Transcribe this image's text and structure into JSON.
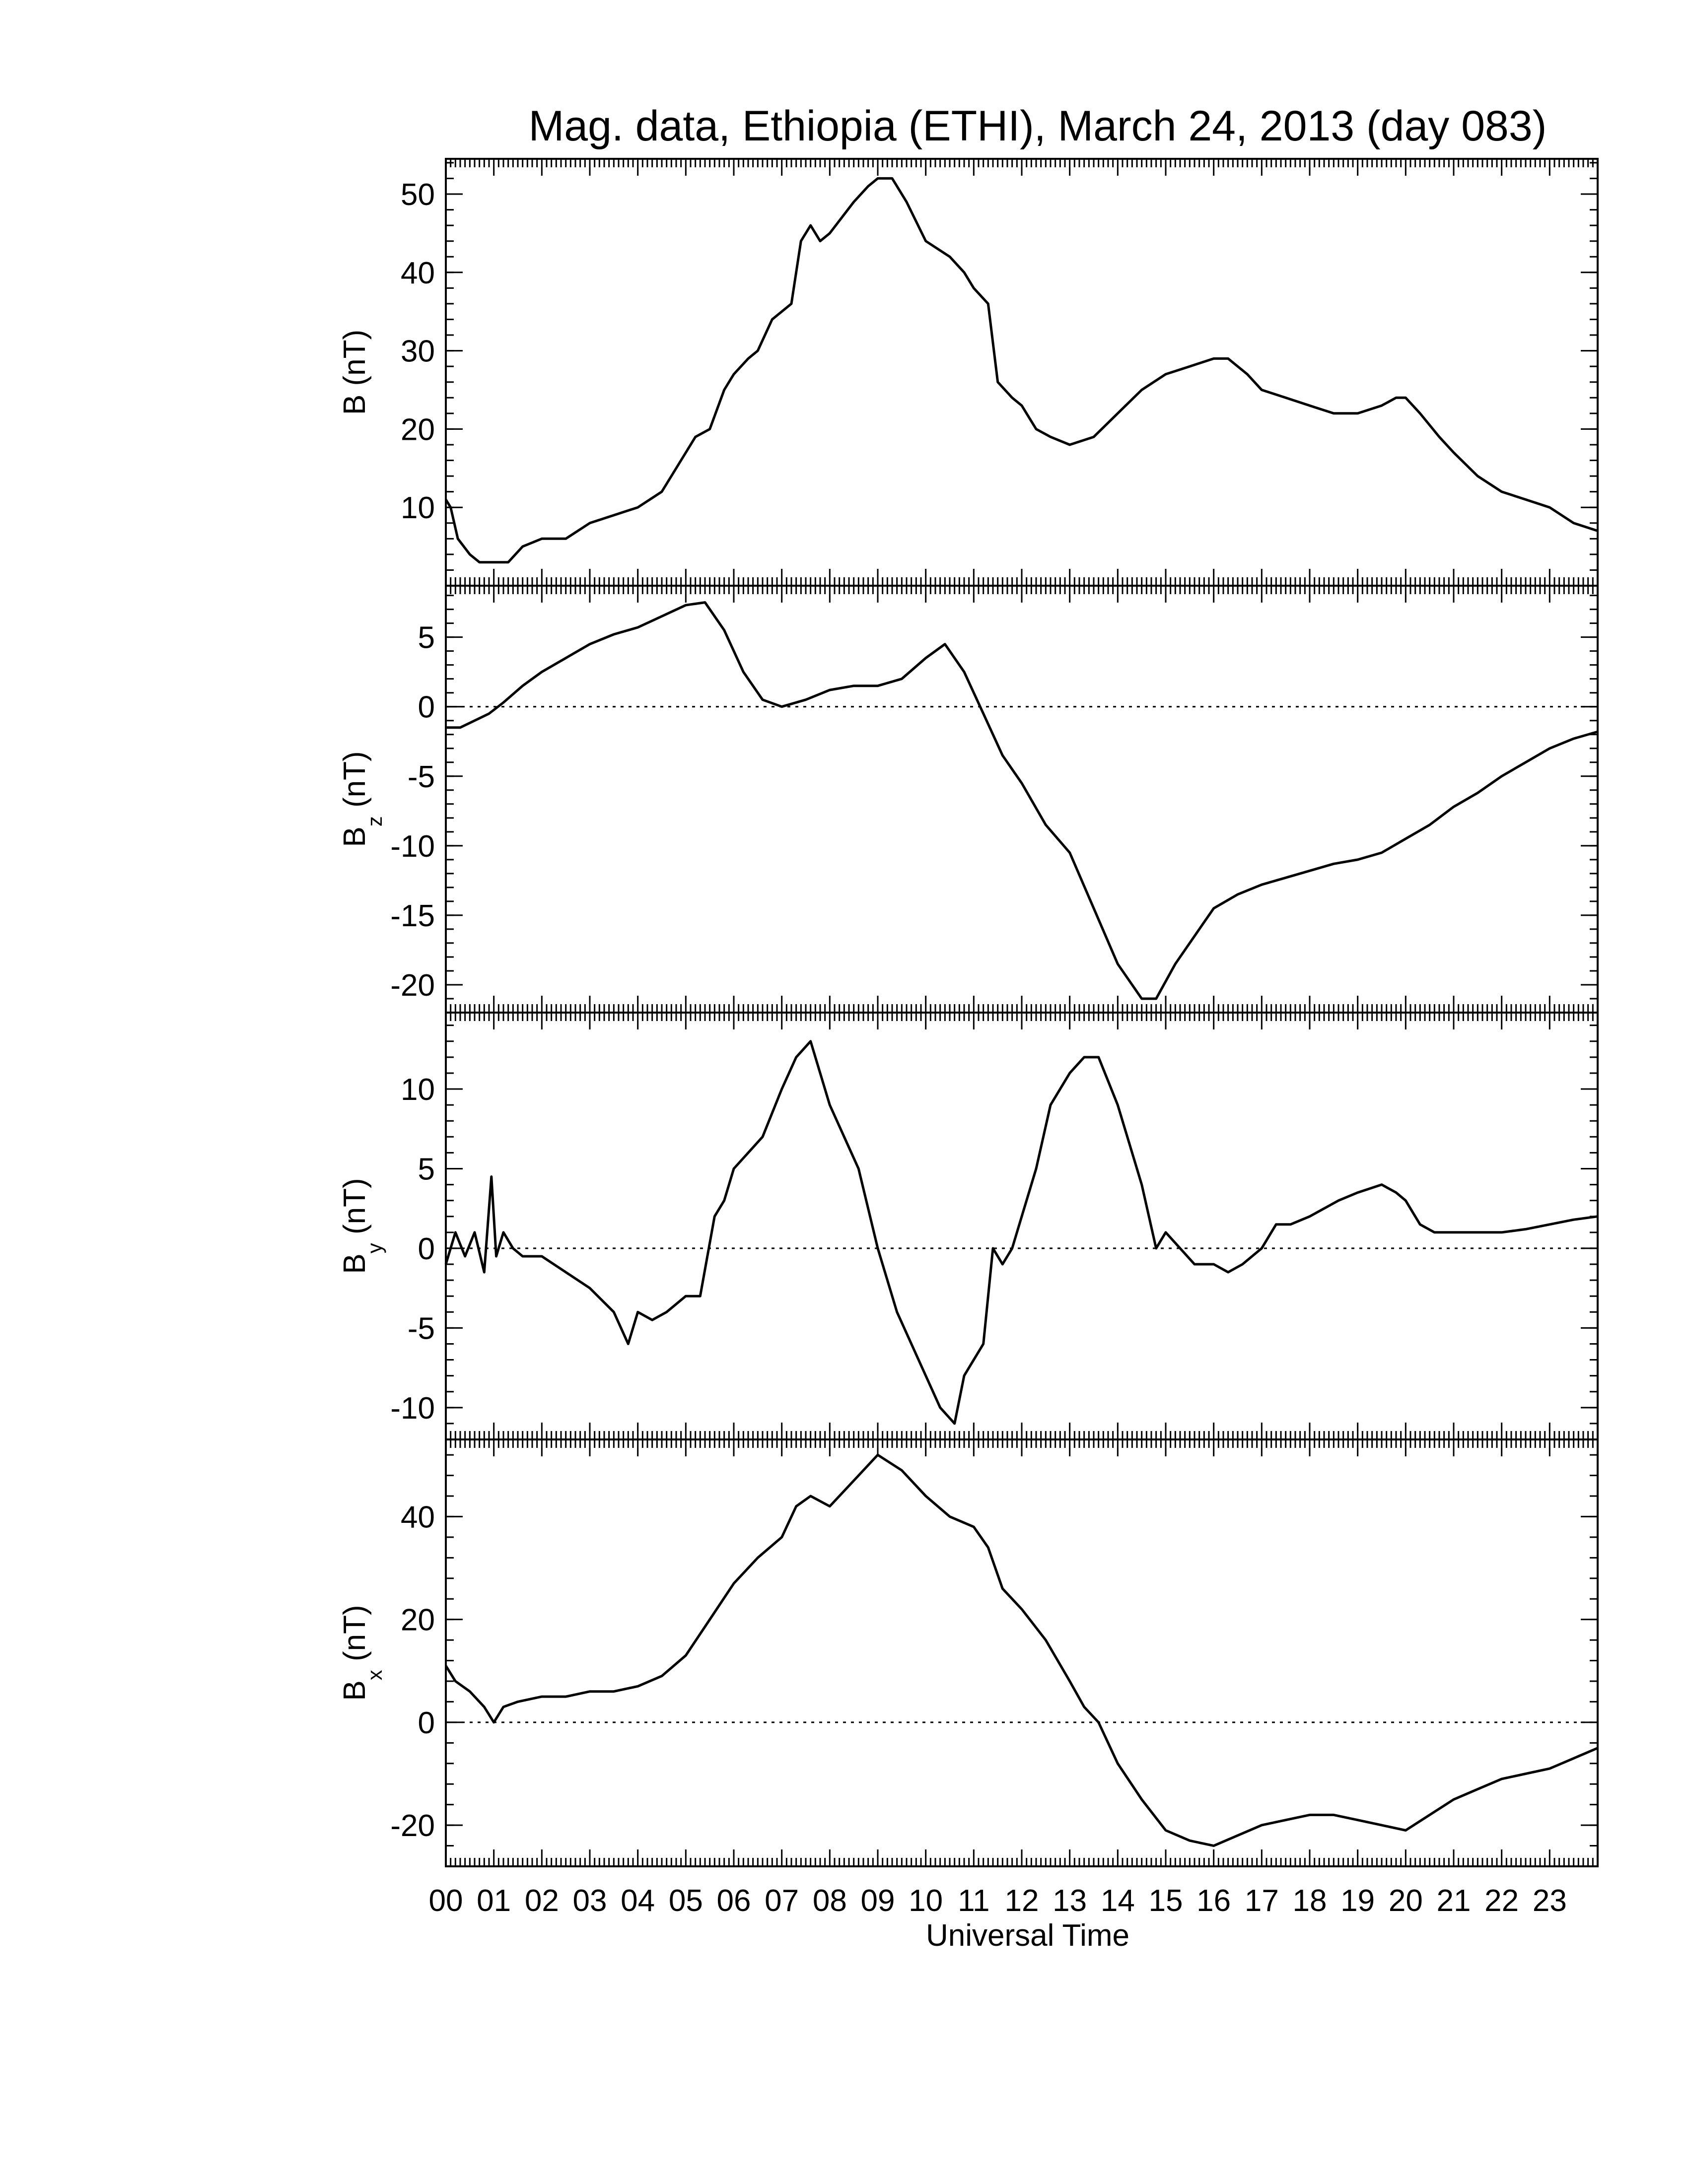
{
  "chart_data": {
    "type": "line",
    "title": "Mag. data, Ethiopia (ETHI), March 24, 2013 (day 083)",
    "xlabel": "Universal Time",
    "xlim": [
      0,
      24
    ],
    "x_tick_labels": [
      "00",
      "01",
      "02",
      "03",
      "04",
      "05",
      "06",
      "07",
      "08",
      "09",
      "10",
      "11",
      "12",
      "13",
      "14",
      "15",
      "16",
      "17",
      "18",
      "19",
      "20",
      "21",
      "22",
      "23"
    ],
    "line_color": "#000000",
    "panels": [
      {
        "id": "B",
        "ylabel_main": "B",
        "ylabel_sub": "",
        "ylabel_unit": " (nT)",
        "ylim": [
          0,
          54.5
        ],
        "yticks": [
          10,
          20,
          30,
          40,
          50
        ],
        "ytick_labels": [
          "10",
          "20",
          "30",
          "40",
          "50"
        ],
        "zero_line": false,
        "x": [
          0,
          0.1,
          0.25,
          0.5,
          0.7,
          1.0,
          1.3,
          1.6,
          2.0,
          2.5,
          3.0,
          3.5,
          4.0,
          4.5,
          4.9,
          5.2,
          5.5,
          5.8,
          6.0,
          6.3,
          6.5,
          6.8,
          7.0,
          7.2,
          7.4,
          7.6,
          7.8,
          8.0,
          8.5,
          8.8,
          9.0,
          9.3,
          9.6,
          10.0,
          10.5,
          10.8,
          11.0,
          11.3,
          11.5,
          11.8,
          12.0,
          12.3,
          12.6,
          13.0,
          13.5,
          14.0,
          14.5,
          15.0,
          15.5,
          16.0,
          16.3,
          16.7,
          17.0,
          17.5,
          18.0,
          18.5,
          19.0,
          19.5,
          19.8,
          20.0,
          20.3,
          20.7,
          21.0,
          21.5,
          22.0,
          22.5,
          23.0,
          23.5,
          24.0
        ],
        "values": [
          11,
          10,
          6,
          4,
          3,
          3,
          3,
          5,
          6,
          6,
          8,
          9,
          10,
          12,
          16,
          19,
          20,
          25,
          27,
          29,
          30,
          34,
          35,
          36,
          44,
          46,
          44,
          45,
          49,
          51,
          52,
          52,
          49,
          44,
          42,
          40,
          38,
          36,
          26,
          24,
          23,
          20,
          19,
          18,
          19,
          22,
          25,
          27,
          28,
          29,
          29,
          27,
          25,
          24,
          23,
          22,
          22,
          23,
          24,
          24,
          22,
          19,
          17,
          14,
          12,
          11,
          10,
          8,
          7
        ]
      },
      {
        "id": "Bz",
        "ylabel_main": "B",
        "ylabel_sub": "z",
        "ylabel_unit": " (nT)",
        "ylim": [
          -22,
          8.7
        ],
        "yticks": [
          -20,
          -15,
          -10,
          -5,
          0,
          5
        ],
        "ytick_labels": [
          "-20",
          "-15",
          "-10",
          "-5",
          "0",
          "5"
        ],
        "zero_line": true,
        "x": [
          0,
          0.3,
          0.6,
          0.9,
          1.2,
          1.6,
          2.0,
          2.5,
          3.0,
          3.5,
          4.0,
          4.5,
          5.0,
          5.4,
          5.8,
          6.2,
          6.6,
          7.0,
          7.5,
          8.0,
          8.5,
          9.0,
          9.5,
          10.0,
          10.4,
          10.8,
          11.2,
          11.6,
          12.0,
          12.5,
          13.0,
          13.5,
          14.0,
          14.5,
          14.8,
          15.2,
          15.6,
          16.0,
          16.5,
          17.0,
          17.5,
          18.0,
          18.5,
          19.0,
          19.5,
          20.0,
          20.5,
          21.0,
          21.5,
          22.0,
          22.5,
          23.0,
          23.5,
          24.0
        ],
        "values": [
          -1.5,
          -1.5,
          -1,
          -0.5,
          0.3,
          1.5,
          2.5,
          3.5,
          4.5,
          5.2,
          5.7,
          6.5,
          7.3,
          7.5,
          5.5,
          2.5,
          0.5,
          0,
          0.5,
          1.2,
          1.5,
          1.5,
          2.0,
          3.5,
          4.5,
          2.5,
          -0.5,
          -3.5,
          -5.5,
          -8.5,
          -10.5,
          -14.5,
          -18.5,
          -21,
          -21,
          -18.5,
          -16.5,
          -14.5,
          -13.5,
          -12.8,
          -12.3,
          -11.8,
          -11.3,
          -11,
          -10.5,
          -9.5,
          -8.5,
          -7.2,
          -6.2,
          -5,
          -4,
          -3,
          -2.3,
          -1.8
        ]
      },
      {
        "id": "By",
        "ylabel_main": "B",
        "ylabel_sub": "y",
        "ylabel_unit": " (nT)",
        "ylim": [
          -12,
          14.8
        ],
        "yticks": [
          -10,
          -5,
          0,
          5,
          10
        ],
        "ytick_labels": [
          "-10",
          "-5",
          "0",
          "5",
          "10"
        ],
        "zero_line": true,
        "x": [
          0,
          0.2,
          0.4,
          0.6,
          0.8,
          0.95,
          1.05,
          1.2,
          1.4,
          1.6,
          2.0,
          2.5,
          3.0,
          3.5,
          3.8,
          4.0,
          4.3,
          4.6,
          5.0,
          5.3,
          5.6,
          5.8,
          6.0,
          6.3,
          6.6,
          7.0,
          7.3,
          7.6,
          8.0,
          8.3,
          8.6,
          9.0,
          9.4,
          9.7,
          10.0,
          10.3,
          10.6,
          10.8,
          11.0,
          11.2,
          11.4,
          11.6,
          11.8,
          12.0,
          12.3,
          12.6,
          13.0,
          13.3,
          13.6,
          14.0,
          14.5,
          14.8,
          15.0,
          15.3,
          15.6,
          16.0,
          16.3,
          16.6,
          17.0,
          17.3,
          17.6,
          18.0,
          18.3,
          18.6,
          19.0,
          19.5,
          19.8,
          20.0,
          20.3,
          20.6,
          21.0,
          21.5,
          22.0,
          22.5,
          23.0,
          23.5,
          24.0
        ],
        "values": [
          -1,
          1,
          -0.5,
          1,
          -1.5,
          4.5,
          -0.5,
          1,
          0,
          -0.5,
          -0.5,
          -1.5,
          -2.5,
          -4,
          -6,
          -4,
          -4.5,
          -4,
          -3,
          -3,
          2,
          3,
          5,
          6,
          7,
          10,
          12,
          13,
          9,
          7,
          5,
          0,
          -4,
          -6,
          -8,
          -10,
          -11,
          -8,
          -7,
          -6,
          0,
          -1,
          0,
          2,
          5,
          9,
          11,
          12,
          12,
          9,
          4,
          0,
          1,
          0,
          -1,
          -1,
          -1.5,
          -1,
          0,
          1.5,
          1.5,
          2,
          2.5,
          3,
          3.5,
          4,
          3.5,
          3,
          1.5,
          1,
          1,
          1,
          1,
          1.2,
          1.5,
          1.8,
          2
        ]
      },
      {
        "id": "Bx",
        "ylabel_main": "B",
        "ylabel_sub": "x",
        "ylabel_unit": " (nT)",
        "ylim": [
          -28,
          55
        ],
        "yticks": [
          -20,
          0,
          20,
          40
        ],
        "ytick_labels": [
          "-20",
          "0",
          "20",
          "40"
        ],
        "zero_line": true,
        "x": [
          0,
          0.2,
          0.5,
          0.8,
          1.0,
          1.2,
          1.5,
          2.0,
          2.5,
          3.0,
          3.5,
          4.0,
          4.5,
          5.0,
          5.5,
          6.0,
          6.5,
          7.0,
          7.3,
          7.6,
          8.0,
          8.5,
          9.0,
          9.5,
          10.0,
          10.5,
          11.0,
          11.3,
          11.6,
          12.0,
          12.5,
          13.0,
          13.3,
          13.6,
          14.0,
          14.5,
          15.0,
          15.5,
          16.0,
          16.5,
          17.0,
          17.5,
          18.0,
          18.5,
          19.0,
          19.5,
          20.0,
          20.5,
          21.0,
          21.5,
          22.0,
          22.5,
          23.0,
          23.5,
          24.0
        ],
        "values": [
          11,
          8,
          6,
          3,
          0,
          3,
          4,
          5,
          5,
          6,
          6,
          7,
          9,
          13,
          20,
          27,
          32,
          36,
          42,
          44,
          42,
          47,
          52,
          49,
          44,
          40,
          38,
          34,
          26,
          22,
          16,
          8,
          3,
          0,
          -8,
          -15,
          -21,
          -23,
          -24,
          -22,
          -20,
          -19,
          -18,
          -18,
          -19,
          -20,
          -21,
          -18,
          -15,
          -13,
          -11,
          -10,
          -9,
          -7,
          -5
        ]
      }
    ]
  }
}
